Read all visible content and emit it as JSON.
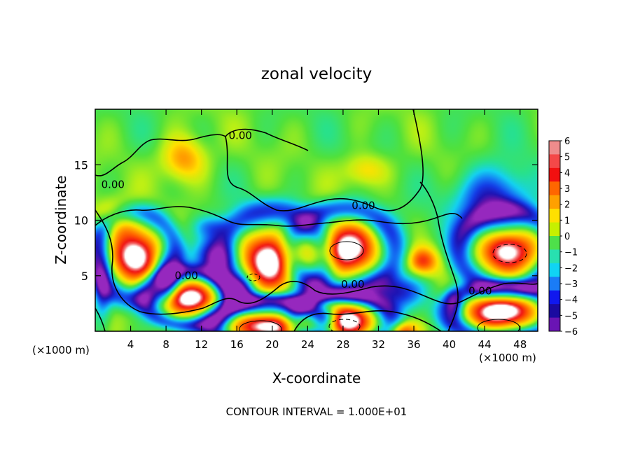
{
  "chart_data": {
    "type": "heatmap",
    "title": "zonal velocity",
    "xlabel": "X-coordinate",
    "ylabel": "Z-coordinate",
    "x_unit_left": "(×1000 m)",
    "x_unit_right": "(×1000 m)",
    "footer": "CONTOUR INTERVAL = 1.000E+01",
    "xlim": [
      0,
      50
    ],
    "ylim": [
      0,
      20
    ],
    "x_ticks": [
      4,
      8,
      12,
      16,
      20,
      24,
      28,
      32,
      36,
      40,
      44,
      48
    ],
    "x_tick_labels": [
      "4",
      "8",
      "12",
      "16",
      "20",
      "24",
      "28",
      "32",
      "36",
      "40",
      "44",
      "48"
    ],
    "y_ticks": [
      5,
      10,
      15
    ],
    "y_tick_labels": [
      "5",
      "10",
      "15"
    ],
    "contour_labels": [
      {
        "text": "0.00",
        "x": 16.4,
        "z": 17.5
      },
      {
        "text": "0.00",
        "x": 2.0,
        "z": 13.1
      },
      {
        "text": "0.00",
        "x": 30.3,
        "z": 11.2
      },
      {
        "text": "0.00",
        "x": 10.3,
        "z": 4.9
      },
      {
        "text": "0.00",
        "x": 29.1,
        "z": 4.1
      },
      {
        "text": "0.00",
        "x": 43.5,
        "z": 3.5
      }
    ],
    "colorbar": {
      "min": -6,
      "max": 6,
      "labels": [
        "6",
        "5",
        "4",
        "3",
        "2",
        "1",
        "0",
        "−1",
        "−2",
        "−3",
        "−4",
        "−5",
        "−6"
      ],
      "colors": [
        "#ee8c8c",
        "#f44848",
        "#f21010",
        "#ff6600",
        "#ffa000",
        "#ffe000",
        "#c6f000",
        "#4ee04a",
        "#28e0b0",
        "#10d4f4",
        "#1a7cf6",
        "#1018ee",
        "#1a0aa0",
        "#6a14b4"
      ]
    },
    "features": [
      {
        "kind": "positive",
        "x": 4.5,
        "z": 6.8,
        "rx": 3.0,
        "rz": 2.5,
        "amp": 6
      },
      {
        "kind": "positive",
        "x": 10.5,
        "z": 3.0,
        "rx": 3.2,
        "rz": 1.6,
        "amp": 6
      },
      {
        "kind": "positive",
        "x": 20.0,
        "z": 6.5,
        "rx": 3.8,
        "rz": 2.8,
        "amp": 6
      },
      {
        "kind": "positive",
        "x": 28.0,
        "z": 7.3,
        "rx": 3.8,
        "rz": 2.4,
        "amp": 6
      },
      {
        "kind": "positive",
        "x": 46.5,
        "z": 7.3,
        "rx": 3.5,
        "rz": 2.3,
        "amp": 6
      },
      {
        "kind": "positive",
        "x": 19.5,
        "z": 0.5,
        "rx": 4.0,
        "rz": 1.5,
        "amp": 6
      },
      {
        "kind": "positive",
        "x": 28.0,
        "z": 1.0,
        "rx": 3.5,
        "rz": 1.5,
        "amp": 6
      },
      {
        "kind": "positive",
        "x": 46.0,
        "z": 1.8,
        "rx": 4.0,
        "rz": 1.5,
        "amp": 6
      },
      {
        "kind": "positive",
        "x": 34.5,
        "z": 0.0,
        "rx": 2.0,
        "rz": 1.0,
        "amp": 5
      },
      {
        "kind": "positive",
        "x": 2.3,
        "z": 10.2,
        "rx": 2.8,
        "rz": 1.6,
        "amp": 3.5
      },
      {
        "kind": "positive",
        "x": 10.0,
        "z": 15.5,
        "rx": 2.5,
        "rz": 2.0,
        "amp": 3.5
      },
      {
        "kind": "positive",
        "x": 37.0,
        "z": 6.3,
        "rx": 1.8,
        "rz": 1.3,
        "amp": 4.5
      },
      {
        "kind": "positive",
        "x": 30.5,
        "z": 14.5,
        "rx": 2.5,
        "rz": 1.5,
        "amp": 2.5
      },
      {
        "kind": "negative",
        "x": 45.0,
        "z": 11.5,
        "rx": 4.0,
        "rz": 3.0,
        "amp": 5.5
      },
      {
        "kind": "negative",
        "x": 13.5,
        "z": 6.5,
        "rx": 2.5,
        "rz": 1.8,
        "amp": 5.0
      },
      {
        "kind": "negative",
        "x": 8.0,
        "z": 5.0,
        "rx": 1.3,
        "rz": 2.0,
        "amp": 4.5
      },
      {
        "kind": "negative",
        "x": 16.5,
        "z": 3.8,
        "rx": 1.6,
        "rz": 1.6,
        "amp": 4.5
      },
      {
        "kind": "negative",
        "x": 34.0,
        "z": 3.6,
        "rx": 3.0,
        "rz": 1.5,
        "amp": 5.0
      },
      {
        "kind": "negative",
        "x": 0.8,
        "z": 4.5,
        "rx": 1.0,
        "rz": 3.5,
        "amp": 4.5
      },
      {
        "kind": "negative",
        "x": 40.5,
        "z": 2.5,
        "rx": 1.0,
        "rz": 1.5,
        "amp": 3.5
      },
      {
        "kind": "negative",
        "x": 13.0,
        "z": 9.4,
        "rx": 2.0,
        "rz": 1.0,
        "amp": 2.5
      },
      {
        "kind": "negative",
        "x": 26.0,
        "z": 1.3,
        "rx": 1.5,
        "rz": 0.9,
        "amp": 4.0
      }
    ]
  }
}
